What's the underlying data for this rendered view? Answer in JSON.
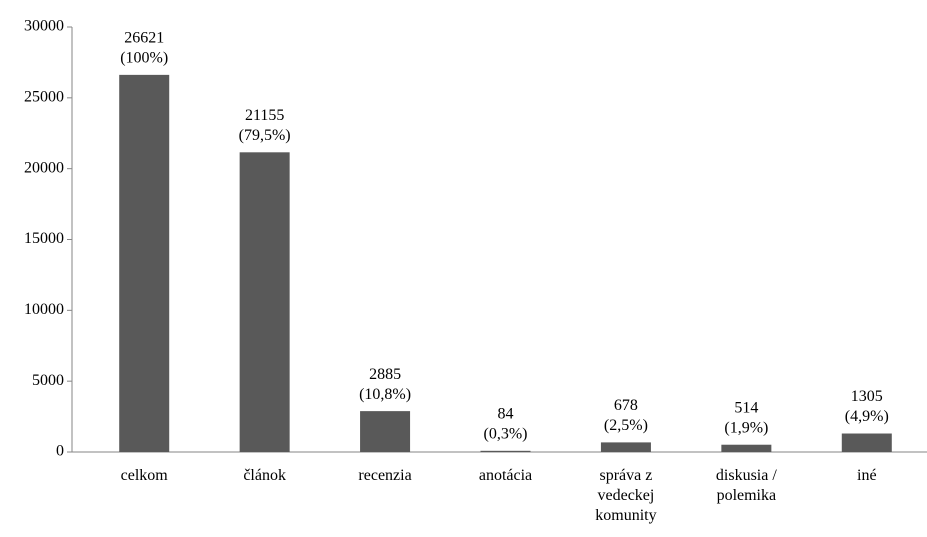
{
  "chart_data": {
    "type": "bar",
    "categories": [
      "celkom",
      "článok",
      "recenzia",
      "anotácia",
      "správa z vedeckej komunity",
      "diskusia / polemika",
      "iné"
    ],
    "values": [
      26621,
      21155,
      2885,
      84,
      678,
      514,
      1305
    ],
    "share_labels": [
      "(100%)",
      "(79,5%)",
      "(10,8%)",
      "(0,3%)",
      "(2,5%)",
      "(1,9%)",
      "(4,9%)"
    ],
    "color": "#595959",
    "ylim": [
      0,
      30000
    ],
    "yticks": [
      0,
      5000,
      10000,
      15000,
      20000,
      25000,
      30000
    ],
    "grid": false
  }
}
